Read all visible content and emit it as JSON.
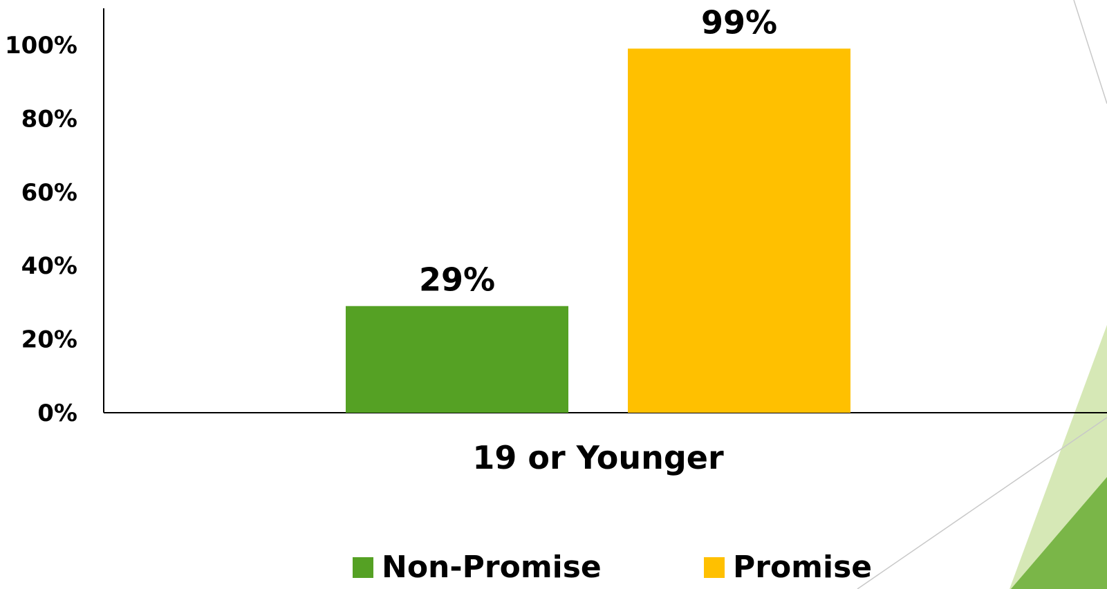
{
  "chart_data": {
    "type": "bar",
    "categories": [
      "19 or Younger"
    ],
    "series": [
      {
        "name": "Non-Promise",
        "values": [
          29
        ],
        "color": "#55a124"
      },
      {
        "name": "Promise",
        "values": [
          99
        ],
        "color": "#ffc000"
      }
    ],
    "data_labels": [
      "29%",
      "99%"
    ],
    "y_ticks": [
      "0%",
      "20%",
      "40%",
      "60%",
      "80%",
      "100%"
    ],
    "ylim": [
      0,
      100
    ],
    "xlabel": "",
    "ylabel": "",
    "title": "",
    "grid": false,
    "legend_position": "bottom"
  },
  "legend": {
    "items": [
      {
        "label": "Non-Promise",
        "color": "#55a124"
      },
      {
        "label": "Promise",
        "color": "#ffc000"
      }
    ]
  },
  "decoration": {
    "accent_light": "#d6e8b6",
    "accent_dark": "#7ab648"
  }
}
